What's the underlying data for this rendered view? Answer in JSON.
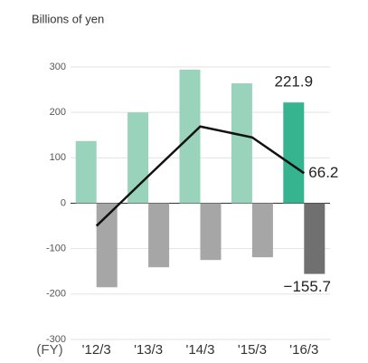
{
  "chart_data": {
    "type": "bar-line",
    "title": "Billions of yen",
    "x_prefix": "(FY)",
    "categories": [
      "'12/3",
      "'13/3",
      "'14/3",
      "'15/3",
      "'16/3"
    ],
    "series": [
      {
        "kind": "bar",
        "colors": [
          "#9ad3bc",
          "#9ad3bc",
          "#9ad3bc",
          "#9ad3bc",
          "#35b48f"
        ],
        "values": [
          137,
          200,
          294,
          264,
          221.9
        ],
        "value_labels": [
          null,
          null,
          null,
          null,
          "221.9"
        ]
      },
      {
        "kind": "bar",
        "colors": [
          "#a6a6a6",
          "#a6a6a6",
          "#a6a6a6",
          "#a6a6a6",
          "#707070"
        ],
        "values": [
          -185,
          -141,
          -125,
          -119,
          -155.7
        ],
        "value_labels": [
          null,
          null,
          null,
          null,
          "−155.7"
        ]
      },
      {
        "kind": "line",
        "color": "#111111",
        "values": [
          -50,
          60,
          169,
          145,
          66.2
        ],
        "value_labels": [
          null,
          null,
          null,
          null,
          "66.2"
        ]
      }
    ],
    "ylim": [
      -300,
      300
    ],
    "yticks": [
      -300,
      -200,
      -100,
      0,
      100,
      200,
      300
    ],
    "grid": true
  }
}
